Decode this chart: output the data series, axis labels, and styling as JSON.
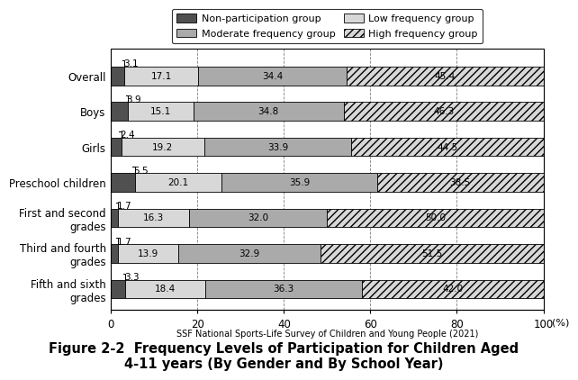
{
  "categories": [
    "Overall",
    "Boys",
    "Girls",
    "Preschool children",
    "First and second\ngrades",
    "Third and fourth\ngrades",
    "Fifth and sixth\ngrades"
  ],
  "non_participation": [
    3.1,
    3.9,
    2.4,
    5.5,
    1.7,
    1.7,
    3.3
  ],
  "low_frequency": [
    17.1,
    15.1,
    19.2,
    20.1,
    16.3,
    13.9,
    18.4
  ],
  "moderate_frequency": [
    34.4,
    34.8,
    33.9,
    35.9,
    32.0,
    32.9,
    36.3
  ],
  "high_frequency": [
    45.4,
    46.3,
    44.5,
    38.5,
    50.0,
    51.5,
    42.0
  ],
  "non_participation_color": "#505050",
  "low_frequency_color": "#d8d8d8",
  "moderate_frequency_color": "#aaaaaa",
  "high_frequency_color": "#d8d8d8",
  "high_frequency_hatch": "////",
  "xlim": [
    0,
    100
  ],
  "xticks": [
    0,
    20,
    40,
    60,
    80,
    100
  ],
  "source_text": "SSF National Sports-Life Survey of Children and Young People (2021)",
  "title_line1": "Figure 2-2  Frequency Levels of Participation for Children Aged",
  "title_line2": "4-11 years (By Gender and By School Year)",
  "legend_labels": [
    "Non-participation group",
    "Low frequency group",
    "Moderate frequency group",
    "High frequency group"
  ]
}
